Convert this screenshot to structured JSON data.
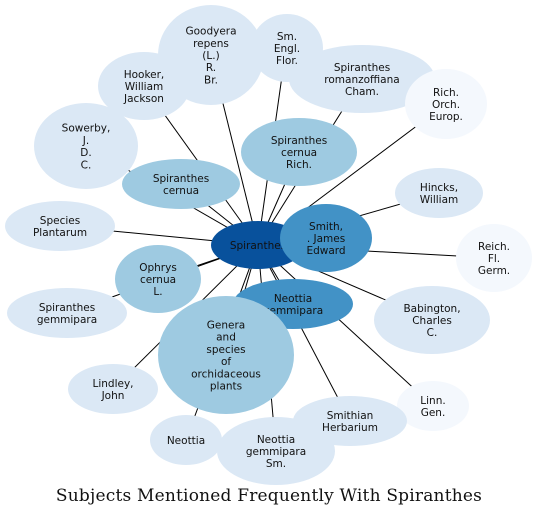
{
  "caption": "Subjects Mentioned Frequently With Spiranthes",
  "center": {
    "id": "spiranthes",
    "label": "Spiranthes",
    "color": "#08519c"
  },
  "nodes": [
    {
      "id": "goodyera",
      "lines": [
        "Goodyera",
        "repens",
        "(L.)",
        "R.",
        "Br."
      ],
      "color": "#dbe8f5"
    },
    {
      "id": "sm-engl-flor",
      "lines": [
        "Sm.",
        "Engl.",
        "Flor."
      ],
      "color": "#dbe8f5"
    },
    {
      "id": "spiranthes-romanzoffiana",
      "lines": [
        "Spiranthes",
        "romanzoffiana",
        "Cham."
      ],
      "color": "#dbe8f5"
    },
    {
      "id": "hooker",
      "lines": [
        "Hooker,",
        "William",
        "Jackson"
      ],
      "color": "#dbe8f5"
    },
    {
      "id": "rich-orch-europ",
      "lines": [
        "Rich.",
        "Orch.",
        "Europ."
      ],
      "color": "#f4f8fd"
    },
    {
      "id": "sowerby",
      "lines": [
        "Sowerby,",
        "J.",
        "D.",
        "C."
      ],
      "color": "#dbe8f5"
    },
    {
      "id": "spiranthes-cernua-rich",
      "lines": [
        "Spiranthes",
        "cernua",
        "Rich."
      ],
      "color": "#9ecae1"
    },
    {
      "id": "spiranthes-cernua",
      "lines": [
        "Spiranthes",
        "cernua"
      ],
      "color": "#9ecae1"
    },
    {
      "id": "hincks",
      "lines": [
        "Hincks,",
        "William"
      ],
      "color": "#dbe8f5"
    },
    {
      "id": "species-plantarum",
      "lines": [
        "Species",
        "Plantarum"
      ],
      "color": "#dbe8f5"
    },
    {
      "id": "smith",
      "lines": [
        "Smith,",
        ". James",
        "Edward"
      ],
      "color": "#4292c6"
    },
    {
      "id": "reich-fl-germ",
      "lines": [
        "Reich.",
        "Fl.",
        "Germ."
      ],
      "color": "#f4f8fd"
    },
    {
      "id": "ophrys-cernua",
      "lines": [
        "Ophrys",
        "cernua",
        "L."
      ],
      "color": "#9ecae1"
    },
    {
      "id": "neottia-gemmipara",
      "lines": [
        "Neottia",
        "gemmipara"
      ],
      "color": "#4292c6"
    },
    {
      "id": "spiranthes-gemmipara",
      "lines": [
        "Spiranthes",
        "gemmipara"
      ],
      "color": "#dbe8f5"
    },
    {
      "id": "babington",
      "lines": [
        "Babington,",
        "Charles",
        "C."
      ],
      "color": "#dbe8f5"
    },
    {
      "id": "genera-species",
      "lines": [
        "Genera",
        "and",
        "species",
        "of",
        "orchidaceous",
        "plants"
      ],
      "color": "#9ecae1"
    },
    {
      "id": "lindley",
      "lines": [
        "Lindley,",
        "John"
      ],
      "color": "#dbe8f5"
    },
    {
      "id": "linn-gen",
      "lines": [
        "Linn.",
        "Gen."
      ],
      "color": "#f4f8fd"
    },
    {
      "id": "smithian-herbarium",
      "lines": [
        "Smithian",
        "Herbarium"
      ],
      "color": "#dbe8f5"
    },
    {
      "id": "neottia",
      "lines": [
        "Neottia"
      ],
      "color": "#dbe8f5"
    },
    {
      "id": "neottia-gemmipara-sm",
      "lines": [
        "Neottia",
        "gemmipara",
        "Sm."
      ],
      "color": "#dbe8f5"
    }
  ]
}
